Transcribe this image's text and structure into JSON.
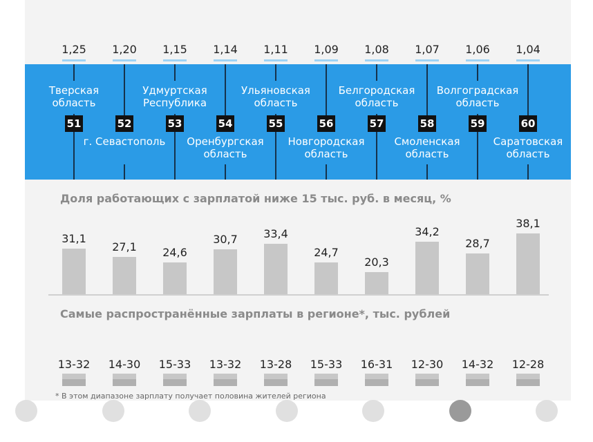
{
  "chart_data": [
    {
      "type": "table",
      "columns": [
        {
          "index": "1,25",
          "rank": "51",
          "region": [
            "Тверская",
            "область"
          ],
          "pos": "above"
        },
        {
          "index": "1,20",
          "rank": "52",
          "region": [
            "г. Севастополь"
          ],
          "pos": "below"
        },
        {
          "index": "1,15",
          "rank": "53",
          "region": [
            "Удмуртская",
            "Республика"
          ],
          "pos": "above"
        },
        {
          "index": "1,14",
          "rank": "54",
          "region": [
            "Оренбургская",
            "область"
          ],
          "pos": "below"
        },
        {
          "index": "1,11",
          "rank": "55",
          "region": [
            "Ульяновская",
            "область"
          ],
          "pos": "above"
        },
        {
          "index": "1,09",
          "rank": "56",
          "region": [
            "Новгородская",
            "область"
          ],
          "pos": "below"
        },
        {
          "index": "1,08",
          "rank": "57",
          "region": [
            "Белгородская",
            "область"
          ],
          "pos": "above"
        },
        {
          "index": "1,07",
          "rank": "58",
          "region": [
            "Смоленская",
            "область"
          ],
          "pos": "below"
        },
        {
          "index": "1,06",
          "rank": "59",
          "region": [
            "Волгоградская",
            "область"
          ],
          "pos": "above"
        },
        {
          "index": "1,04",
          "rank": "60",
          "region": [
            "Саратовская",
            "область"
          ],
          "pos": "below"
        }
      ]
    },
    {
      "type": "bar",
      "title": "Доля работающих с зарплатой ниже 15 тыс. руб. в месяц, %",
      "values": [
        31.1,
        27.1,
        24.6,
        30.7,
        33.4,
        24.7,
        20.3,
        34.2,
        28.7,
        38.1
      ],
      "labels": [
        "31,1",
        "27,1",
        "24,6",
        "30,7",
        "33,4",
        "24,7",
        "20,3",
        "34,2",
        "28,7",
        "38,1"
      ],
      "xlabel": "",
      "ylabel": ""
    },
    {
      "type": "table",
      "title": "Самые распространённые зарплаты в регионе*, тыс. рублей",
      "ranges": [
        "13-32",
        "14-30",
        "15-33",
        "13-32",
        "13-28",
        "15-33",
        "16-31",
        "12-30",
        "14-32",
        "12-28"
      ],
      "footnote": "* В этом диапазоне зарплату получает половина жителей региона"
    }
  ],
  "pagination": {
    "count": 7,
    "active": 5
  }
}
